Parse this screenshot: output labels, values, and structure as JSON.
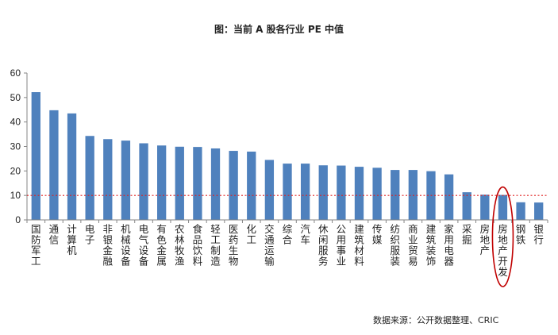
{
  "chart_data": {
    "type": "bar",
    "title": "图：当前 A 股各行业 PE 中值",
    "categories": [
      "国防军工",
      "通信",
      "计算机",
      "电子",
      "非银金融",
      "机械设备",
      "电气设备",
      "有色金属",
      "农林牧渔",
      "食品饮料",
      "轻工制造",
      "医药生物",
      "化工",
      "交通运输",
      "综合",
      "汽车",
      "休闲服务",
      "公用事业",
      "建筑材料",
      "传媒",
      "纺织服装",
      "商业贸易",
      "建筑装饰",
      "家用电器",
      "采掘",
      "房地产",
      "房地产开发",
      "钢铁",
      "银行"
    ],
    "values": [
      52.2,
      44.8,
      43.5,
      34.3,
      33.0,
      32.4,
      31.3,
      30.4,
      29.9,
      29.8,
      29.2,
      28.2,
      27.9,
      24.5,
      23.0,
      23.0,
      22.3,
      22.2,
      21.7,
      21.3,
      20.4,
      20.4,
      19.9,
      18.6,
      11.3,
      10.3,
      10.2,
      7.2,
      7.1
    ],
    "ylim": [
      0,
      60
    ],
    "yticks": [
      0,
      10,
      20,
      30,
      40,
      50,
      60
    ],
    "reference_line": {
      "value": 10,
      "color": "#e02020",
      "style": "dotted"
    },
    "highlight": {
      "category": "房地产开发",
      "shape": "ellipse",
      "color": "#c00000"
    },
    "bar_color": "#4f81bd",
    "grid": false,
    "xlabel": "",
    "ylabel": ""
  },
  "source_note": "数据来源：公开数据整理、CRIC"
}
